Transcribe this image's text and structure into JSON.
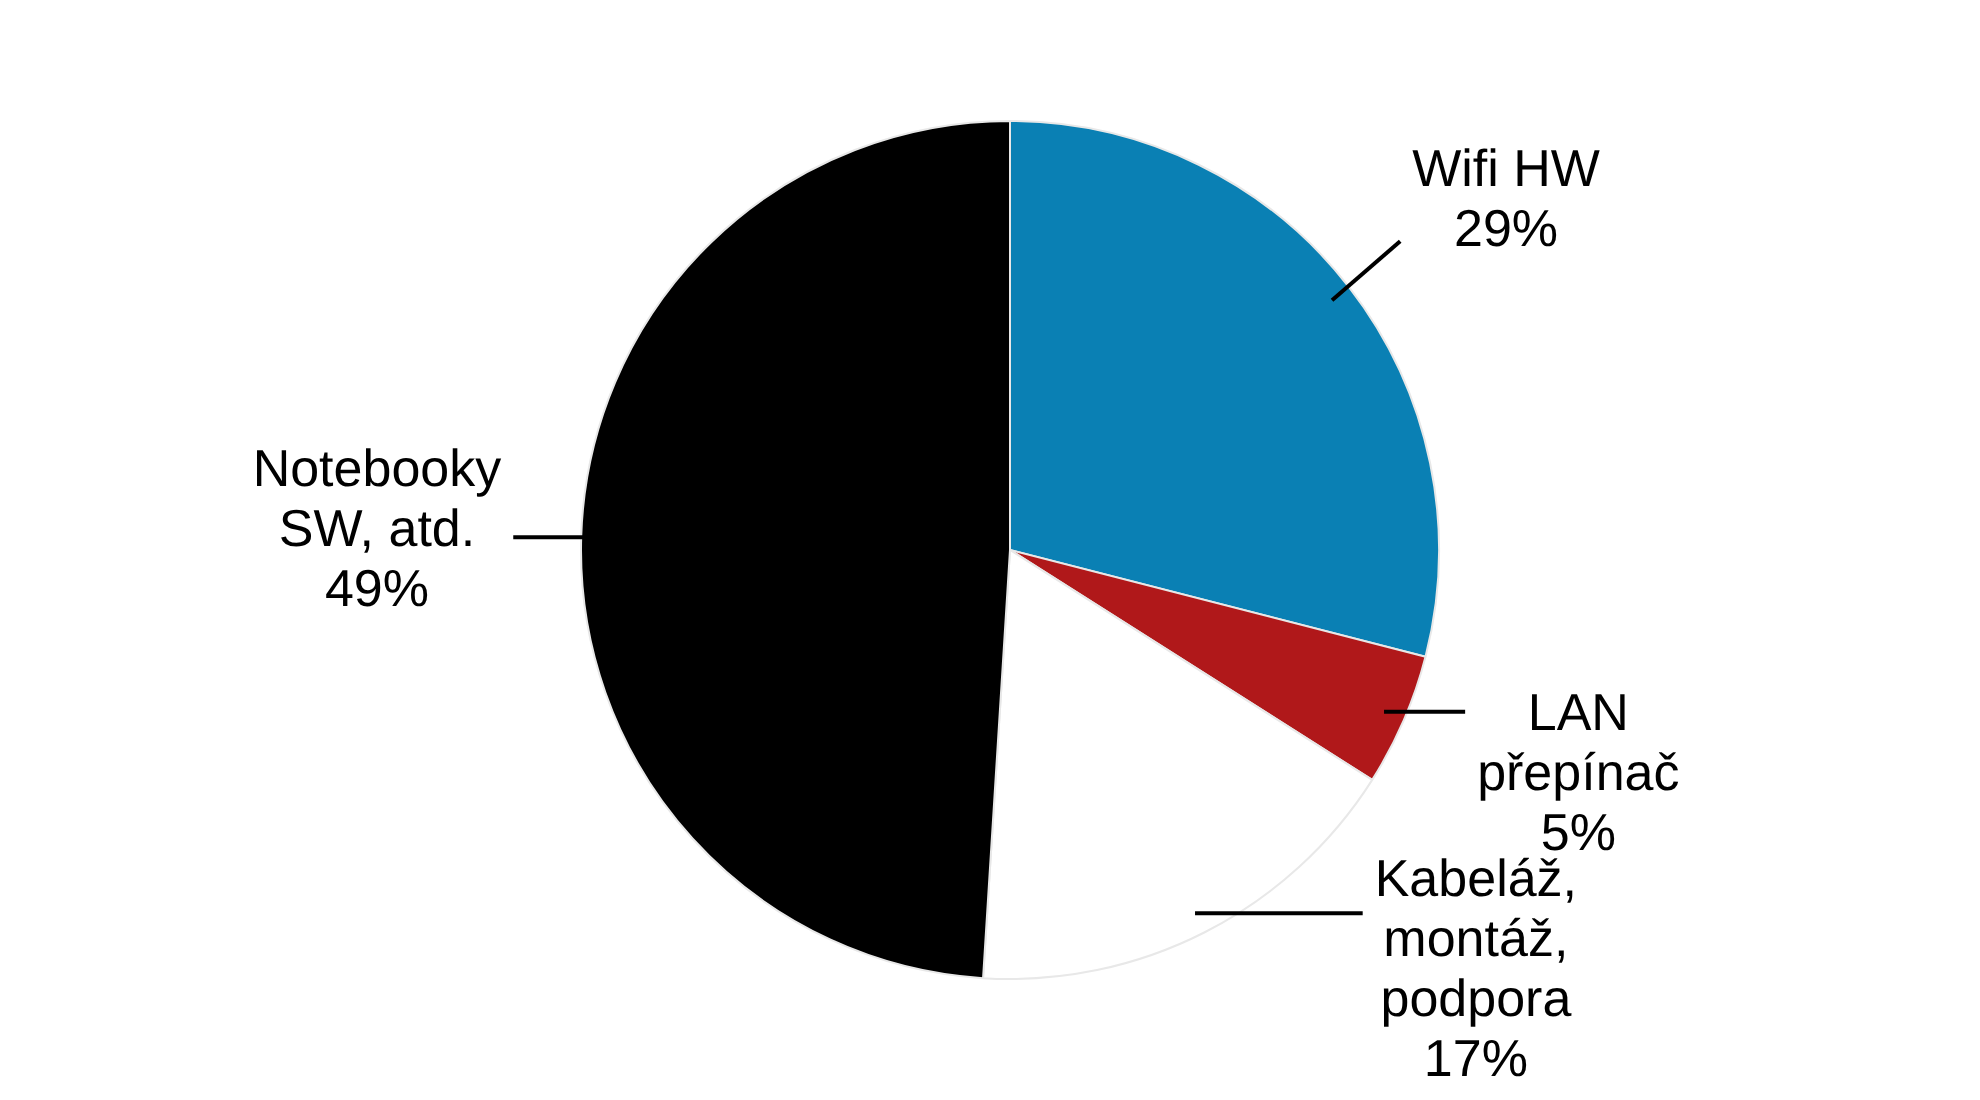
{
  "chart_data": {
    "type": "pie",
    "categories": [
      "Wifi HW",
      "LAN přepínač",
      "Kabeláž, montáž, podpora",
      "Notebooky SW, atd."
    ],
    "values": [
      29,
      5,
      17,
      49
    ],
    "colors": [
      "#0a80b4",
      "#b0181a",
      "#ffffff",
      "#000000"
    ],
    "value_labels": [
      "29%",
      "5%",
      "17%",
      "49%"
    ],
    "legend": false
  }
}
